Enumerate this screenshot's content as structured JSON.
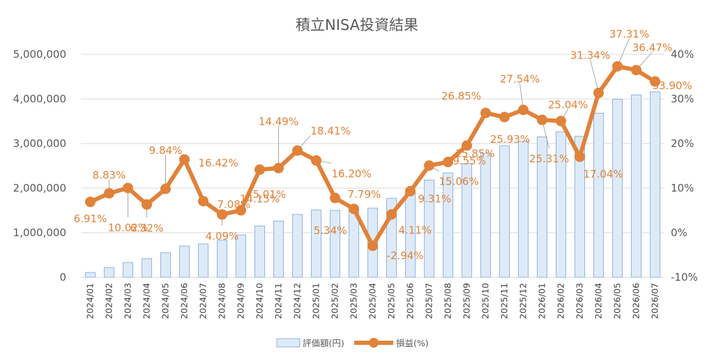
{
  "chart_data": {
    "type": "bar+line",
    "title": "積立NISA投資結果",
    "categories": [
      "2024/01",
      "2024/02",
      "2024/03",
      "2024/04",
      "2024/05",
      "2024/06",
      "2024/07",
      "2024/08",
      "2024/09",
      "2024/10",
      "2024/11",
      "2024/12",
      "2025/01",
      "2025/02",
      "2025/03",
      "2025/04",
      "2025/05",
      "2025/06",
      "2025/07",
      "2025/08",
      "2025/09",
      "2025/10",
      "2025/11",
      "2025/12",
      "2026/01",
      "2026/02",
      "2026/03",
      "2026/04",
      "2026/05",
      "2026/06",
      "2026/07"
    ],
    "series": [
      {
        "name": "評価額(円)",
        "type": "bar",
        "axis": "left",
        "values": [
          107000,
          220000,
          330000,
          420000,
          550000,
          700000,
          750000,
          830000,
          950000,
          1150000,
          1260000,
          1410000,
          1510000,
          1500000,
          1560000,
          1550000,
          1770000,
          1950000,
          2180000,
          2340000,
          2550000,
          2780000,
          2950000,
          3050000,
          3150000,
          3260000,
          3160000,
          3680000,
          3990000,
          4090000,
          4160000
        ]
      },
      {
        "name": "損益(%)",
        "type": "line",
        "axis": "right",
        "values": [
          6.91,
          8.83,
          10.02,
          6.32,
          9.84,
          16.42,
          7.08,
          4.09,
          5.01,
          14.15,
          14.49,
          18.41,
          16.2,
          7.79,
          5.34,
          -2.94,
          4.11,
          9.31,
          15.06,
          15.85,
          19.55,
          26.85,
          25.93,
          27.54,
          25.31,
          25.04,
          17.04,
          31.34,
          37.31,
          36.47,
          33.9
        ],
        "labels": [
          "6.91%",
          "8.83%",
          "10.02%",
          "6.32%",
          "9.84%",
          "16.42%",
          "7.08%",
          "4.09%",
          "5.01%",
          "14.15%",
          "14.49%",
          "18.41%",
          "16.20%",
          "7.79%",
          "5.34%",
          "-2.94%",
          "4.11%",
          "9.31%",
          "15.06%",
          "15.85%",
          "19.55%",
          "26.85%",
          "25.93%",
          "27.54%",
          "25.31%",
          "25.04%",
          "17.04%",
          "31.34%",
          "37.31%",
          "36.47%",
          "33.90%"
        ]
      }
    ],
    "y_left": {
      "min": 0,
      "max": 5000000,
      "step": 1000000,
      "tick_labels": [
        "0",
        "1,000,000",
        "2,000,000",
        "3,000,000",
        "4,000,000",
        "5,000,000"
      ]
    },
    "y_right": {
      "min": -10,
      "max": 40,
      "step": 10,
      "tick_labels": [
        "-10%",
        "0%",
        "10%",
        "20%",
        "30%",
        "40%"
      ]
    },
    "grid": true,
    "legend_position": "bottom",
    "colors": {
      "bar_fill": "#DEEAF8",
      "bar_stroke": "#8FB4E3",
      "line": "#E0823A",
      "label": "#E0823A",
      "grid": "#D9D9D9",
      "text": "#595959"
    }
  }
}
